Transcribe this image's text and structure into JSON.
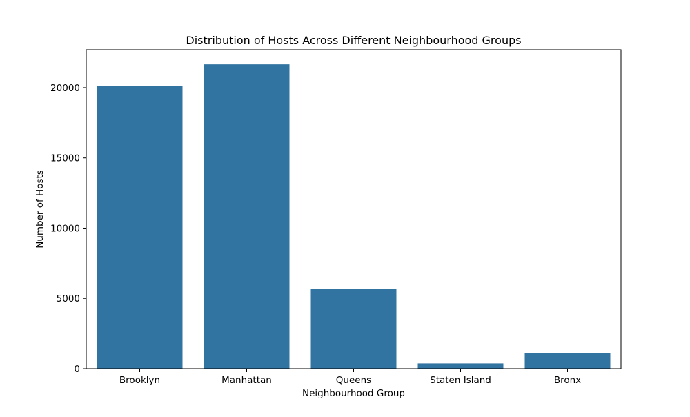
{
  "chart_data": {
    "type": "bar",
    "title": "Distribution of Hosts Across Different Neighbourhood Groups",
    "xlabel": "Neighbourhood Group",
    "ylabel": "Number of Hosts",
    "categories": [
      "Brooklyn",
      "Manhattan",
      "Queens",
      "Staten Island",
      "Bronx"
    ],
    "values": [
      20104,
      21661,
      5666,
      373,
      1091
    ],
    "ylim": [
      0,
      22700
    ],
    "yticks": [
      0,
      5000,
      10000,
      15000,
      20000
    ],
    "ytick_labels": [
      "0",
      "5000",
      "10000",
      "15000",
      "20000"
    ],
    "bar_color": "#3274a1",
    "grid": false,
    "legend": false
  }
}
